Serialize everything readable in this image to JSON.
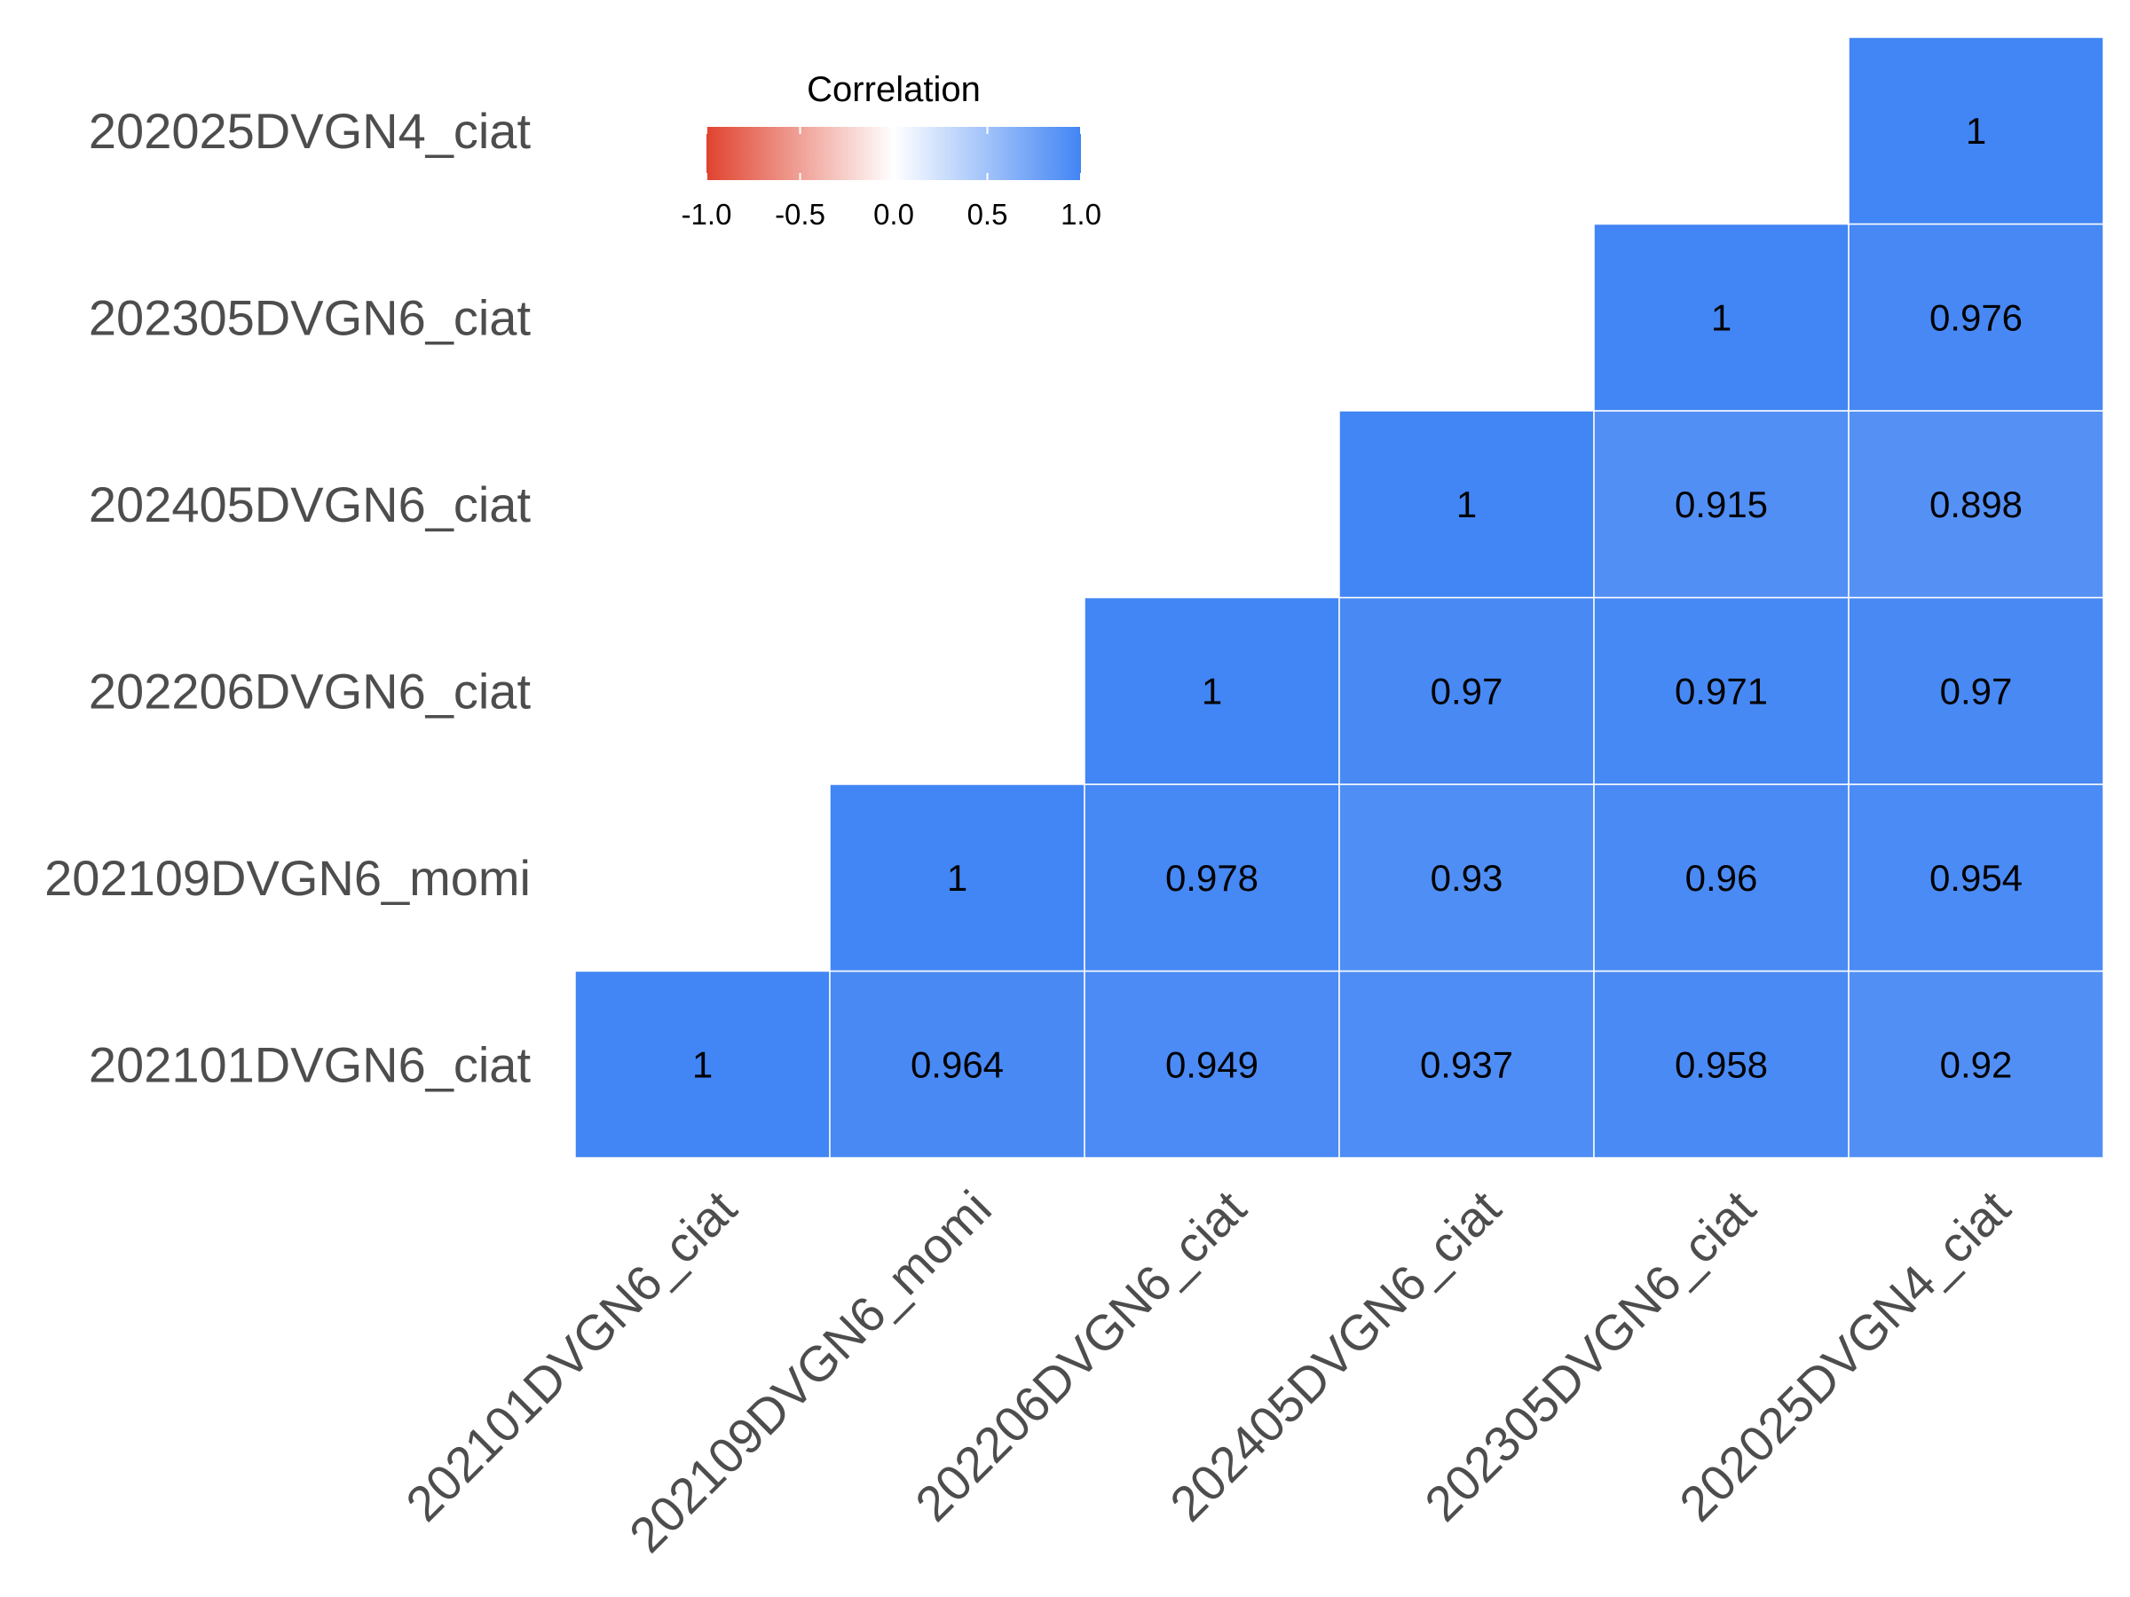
{
  "chart_data": {
    "type": "heatmap",
    "variables": [
      "202101DVGN6_ciat",
      "202109DVGN6_momi",
      "202206DVGN6_ciat",
      "202405DVGN6_ciat",
      "202305DVGN6_ciat",
      "202025DVGN4_ciat"
    ],
    "x_labels": [
      "202101DVGN6_ciat",
      "202109DVGN6_momi",
      "202206DVGN6_ciat",
      "202405DVGN6_ciat",
      "202305DVGN6_ciat",
      "202025DVGN4_ciat"
    ],
    "y_labels_bottom_to_top": [
      "202101DVGN6_ciat",
      "202109DVGN6_momi",
      "202206DVGN6_ciat",
      "202405DVGN6_ciat",
      "202305DVGN6_ciat",
      "202025DVGN4_ciat"
    ],
    "triangle": "upper",
    "cells": [
      {
        "x": "202101DVGN6_ciat",
        "y": "202101DVGN6_ciat",
        "value": 1,
        "label": "1"
      },
      {
        "x": "202109DVGN6_momi",
        "y": "202101DVGN6_ciat",
        "value": 0.964,
        "label": "0.964"
      },
      {
        "x": "202206DVGN6_ciat",
        "y": "202101DVGN6_ciat",
        "value": 0.949,
        "label": "0.949"
      },
      {
        "x": "202405DVGN6_ciat",
        "y": "202101DVGN6_ciat",
        "value": 0.937,
        "label": "0.937"
      },
      {
        "x": "202305DVGN6_ciat",
        "y": "202101DVGN6_ciat",
        "value": 0.958,
        "label": "0.958"
      },
      {
        "x": "202025DVGN4_ciat",
        "y": "202101DVGN6_ciat",
        "value": 0.92,
        "label": "0.92"
      },
      {
        "x": "202109DVGN6_momi",
        "y": "202109DVGN6_momi",
        "value": 1,
        "label": "1"
      },
      {
        "x": "202206DVGN6_ciat",
        "y": "202109DVGN6_momi",
        "value": 0.978,
        "label": "0.978"
      },
      {
        "x": "202405DVGN6_ciat",
        "y": "202109DVGN6_momi",
        "value": 0.93,
        "label": "0.93"
      },
      {
        "x": "202305DVGN6_ciat",
        "y": "202109DVGN6_momi",
        "value": 0.96,
        "label": "0.96"
      },
      {
        "x": "202025DVGN4_ciat",
        "y": "202109DVGN6_momi",
        "value": 0.954,
        "label": "0.954"
      },
      {
        "x": "202206DVGN6_ciat",
        "y": "202206DVGN6_ciat",
        "value": 1,
        "label": "1"
      },
      {
        "x": "202405DVGN6_ciat",
        "y": "202206DVGN6_ciat",
        "value": 0.97,
        "label": "0.97"
      },
      {
        "x": "202305DVGN6_ciat",
        "y": "202206DVGN6_ciat",
        "value": 0.971,
        "label": "0.971"
      },
      {
        "x": "202025DVGN4_ciat",
        "y": "202206DVGN6_ciat",
        "value": 0.97,
        "label": "0.97"
      },
      {
        "x": "202405DVGN6_ciat",
        "y": "202405DVGN6_ciat",
        "value": 1,
        "label": "1"
      },
      {
        "x": "202305DVGN6_ciat",
        "y": "202405DVGN6_ciat",
        "value": 0.915,
        "label": "0.915"
      },
      {
        "x": "202025DVGN4_ciat",
        "y": "202405DVGN6_ciat",
        "value": 0.898,
        "label": "0.898"
      },
      {
        "x": "202305DVGN6_ciat",
        "y": "202305DVGN6_ciat",
        "value": 1,
        "label": "1"
      },
      {
        "x": "202025DVGN4_ciat",
        "y": "202305DVGN6_ciat",
        "value": 0.976,
        "label": "0.976"
      },
      {
        "x": "202025DVGN4_ciat",
        "y": "202025DVGN4_ciat",
        "value": 1,
        "label": "1"
      }
    ],
    "legend": {
      "title": "Correlation",
      "placement": "top-left",
      "range": [
        -1,
        1
      ],
      "ticks": [
        -1,
        -0.5,
        0,
        0.5,
        1
      ],
      "tick_labels": [
        "-1.0",
        "-0.5",
        "0.0",
        "0.5",
        "1.0"
      ],
      "colors": {
        "low": "#E0432F",
        "mid": "#FFFFFF",
        "high": "#4285F4"
      }
    },
    "colors": {
      "cell_border": "#FFFFFF",
      "axis_text": "#4D4D4D",
      "label_text": "#000000"
    }
  }
}
